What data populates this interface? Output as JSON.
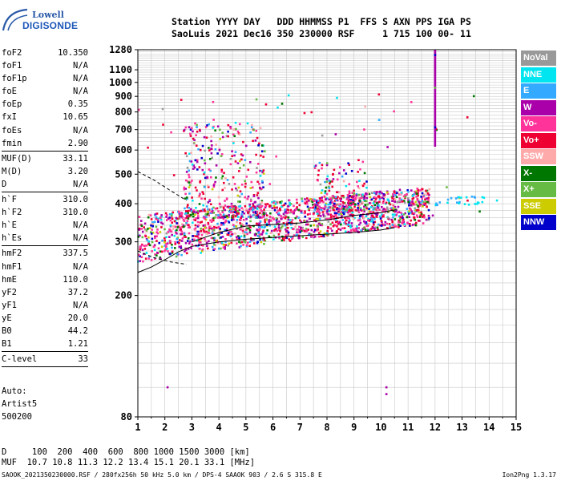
{
  "logo": {
    "line1": "Lowell",
    "line2": "DIGISONDE"
  },
  "header": {
    "line1": "Station YYYY DAY   DDD HHMMSS P1  FFS S AXN PPS IGA PS",
    "line2": "SaoLuis 2021 Dec16 350 230000 RSF     1 715 100 00- 11"
  },
  "params": [
    {
      "name": "foF2",
      "value": "10.350"
    },
    {
      "name": "foF1",
      "value": "N/A"
    },
    {
      "name": "foF1p",
      "value": "N/A"
    },
    {
      "name": "foE",
      "value": "N/A"
    },
    {
      "name": "foEp",
      "value": "0.35"
    },
    {
      "name": "fxI",
      "value": "10.65"
    },
    {
      "name": "foEs",
      "value": "N/A"
    },
    {
      "name": "fmin",
      "value": "2.90",
      "sep": true
    },
    {
      "name": "MUF(D)",
      "value": "33.11"
    },
    {
      "name": "M(D)",
      "value": "3.20"
    },
    {
      "name": "D",
      "value": "N/A",
      "sep": true
    },
    {
      "name": "h`F",
      "value": "310.0"
    },
    {
      "name": "h`F2",
      "value": "310.0"
    },
    {
      "name": "h`E",
      "value": "N/A"
    },
    {
      "name": "h`Es",
      "value": "N/A",
      "sep": true
    },
    {
      "name": "hmF2",
      "value": "337.5"
    },
    {
      "name": "hmF1",
      "value": "N/A"
    },
    {
      "name": "hmE",
      "value": "110.0"
    },
    {
      "name": "yF2",
      "value": "37.2"
    },
    {
      "name": "yF1",
      "value": "N/A"
    },
    {
      "name": "yE",
      "value": "20.0"
    },
    {
      "name": "B0",
      "value": "44.2"
    },
    {
      "name": "B1",
      "value": "1.21",
      "sep": true
    },
    {
      "name": "C-level",
      "value": "33",
      "sep": true
    }
  ],
  "extra": [
    "Auto:",
    "Artist5",
    "500200"
  ],
  "legend": [
    {
      "label": "NoVal",
      "color": "#999999"
    },
    {
      "label": "NNE",
      "color": "#00e5f0"
    },
    {
      "label": "E",
      "color": "#33aaff"
    },
    {
      "label": "W",
      "color": "#aa00aa"
    },
    {
      "label": "Vo-",
      "color": "#ff3399"
    },
    {
      "label": "Vo+",
      "color": "#ee0033"
    },
    {
      "label": "SSW",
      "color": "#ffaaaa"
    },
    {
      "label": "X-",
      "color": "#007700"
    },
    {
      "label": "X+",
      "color": "#66bb44"
    },
    {
      "label": "SSE",
      "color": "#cccc00"
    },
    {
      "label": "NNW",
      "color": "#0000cc"
    }
  ],
  "footer": {
    "d_row": "D     100  200  400  600  800 1000 1500 3000 [km]",
    "muf_row": "MUF  10.7 10.8 11.3 12.2 13.4 15.1 20.1 33.1 [MHz]",
    "file": "SAOOK_2021350230000.RSF / 280fx256h 50 kHz 5.0 km / DPS-4 SAAOK 903 / 2.6 S 315.8 E",
    "version": "Ion2Png 1.3.17"
  },
  "chart_data": {
    "type": "scatter",
    "xlabel": "",
    "ylabel": "",
    "xlim": [
      1,
      15
    ],
    "ylim": [
      80,
      1280
    ],
    "y_scale": "log",
    "x_ticks": [
      1,
      2,
      3,
      4,
      5,
      6,
      7,
      8,
      9,
      10,
      11,
      12,
      13,
      14,
      15
    ],
    "y_ticks": [
      80,
      200,
      300,
      400,
      500,
      600,
      700,
      800,
      900,
      1000,
      1100,
      1280
    ],
    "grid": true,
    "legend_position": "right",
    "trace_lower": [
      [
        1.0,
        238
      ],
      [
        1.5,
        248
      ],
      [
        2.0,
        262
      ],
      [
        2.5,
        278
      ],
      [
        3.0,
        290
      ],
      [
        4.0,
        300
      ],
      [
        5.0,
        306
      ],
      [
        6.0,
        310
      ],
      [
        7.0,
        314
      ],
      [
        8.0,
        318
      ],
      [
        9.0,
        322
      ],
      [
        10.0,
        328
      ],
      [
        10.5,
        334
      ]
    ],
    "trace_upper": [
      [
        3.0,
        300
      ],
      [
        4.0,
        322
      ],
      [
        5.0,
        338
      ],
      [
        6.0,
        342
      ],
      [
        7.0,
        346
      ],
      [
        8.0,
        354
      ],
      [
        9.0,
        366
      ],
      [
        10.0,
        374
      ],
      [
        10.5,
        382
      ]
    ],
    "trace_dashed": [
      [
        1.0,
        510
      ],
      [
        1.6,
        478
      ],
      [
        2.2,
        442
      ],
      [
        2.8,
        410
      ]
    ],
    "trace_dashed2": [
      [
        1.0,
        280
      ],
      [
        1.6,
        266
      ],
      [
        2.2,
        258
      ],
      [
        2.8,
        253
      ]
    ]
  }
}
